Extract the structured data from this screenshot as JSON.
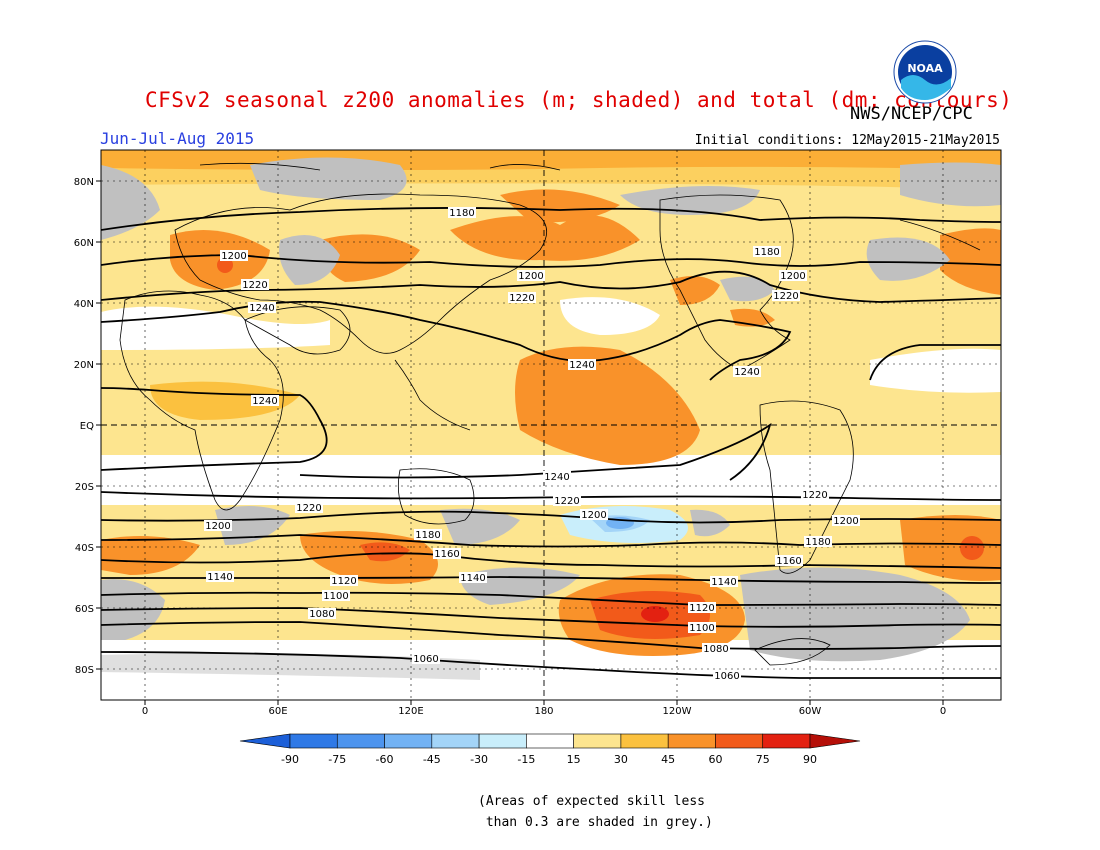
{
  "title": "CFSv2 seasonal z200 anomalies (m; shaded) and total (dm; contours)",
  "agency": "NWS/NCEP/CPC",
  "season": "Jun-Jul-Aug 2015",
  "initial_conditions": "Initial conditions: 12May2015-21May2015",
  "logo_text": "NOAA",
  "footnote": "(Areas of expected skill less\n than 0.3 are shaded in grey.)",
  "colors": {
    "land_outline": "#000000",
    "grey_low_skill": "#c0c0c0",
    "title": "#e00000",
    "season": "#2a40e0"
  },
  "map": {
    "lat_labels": [
      "80N",
      "60N",
      "40N",
      "20N",
      "EQ",
      "20S",
      "40S",
      "60S",
      "80S"
    ],
    "lon_labels": [
      "0",
      "60E",
      "120E",
      "180",
      "120W",
      "60W",
      "0"
    ],
    "contour_labels": [
      "1180",
      "1200",
      "1220",
      "1240",
      "1160",
      "1140",
      "1120",
      "1100",
      "1080",
      "1060"
    ]
  },
  "colorbar": {
    "labels": [
      "-90",
      "-75",
      "-60",
      "-45",
      "-30",
      "-15",
      "15",
      "30",
      "45",
      "60",
      "75",
      "90"
    ],
    "colors": [
      "#1c5fd8",
      "#2f79e6",
      "#4d94ee",
      "#72b2f4",
      "#a3d4f8",
      "#c9eefb",
      "#ffffff",
      "#fde58f",
      "#fbc13f",
      "#f9922a",
      "#f25a1a",
      "#e32111",
      "#b50f08"
    ]
  }
}
